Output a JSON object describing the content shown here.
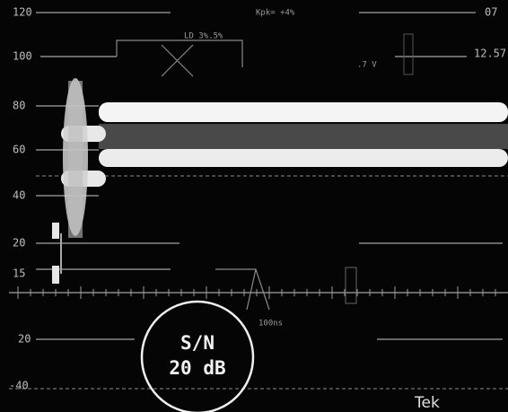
{
  "screen": {
    "graticule_labels": [
      "120",
      "100",
      "80",
      "60",
      "40",
      "20",
      "15",
      "20",
      "-40"
    ],
    "header": "Kpk= +4%",
    "top_right": "07",
    "right_label": "12.57",
    "marker_label": "LD 3%.5%",
    "voltage_label": ".7 V",
    "time_label": "100ns",
    "annotation": {
      "line1": "S/N",
      "line2": "20 dB"
    },
    "brand": "Tek"
  }
}
